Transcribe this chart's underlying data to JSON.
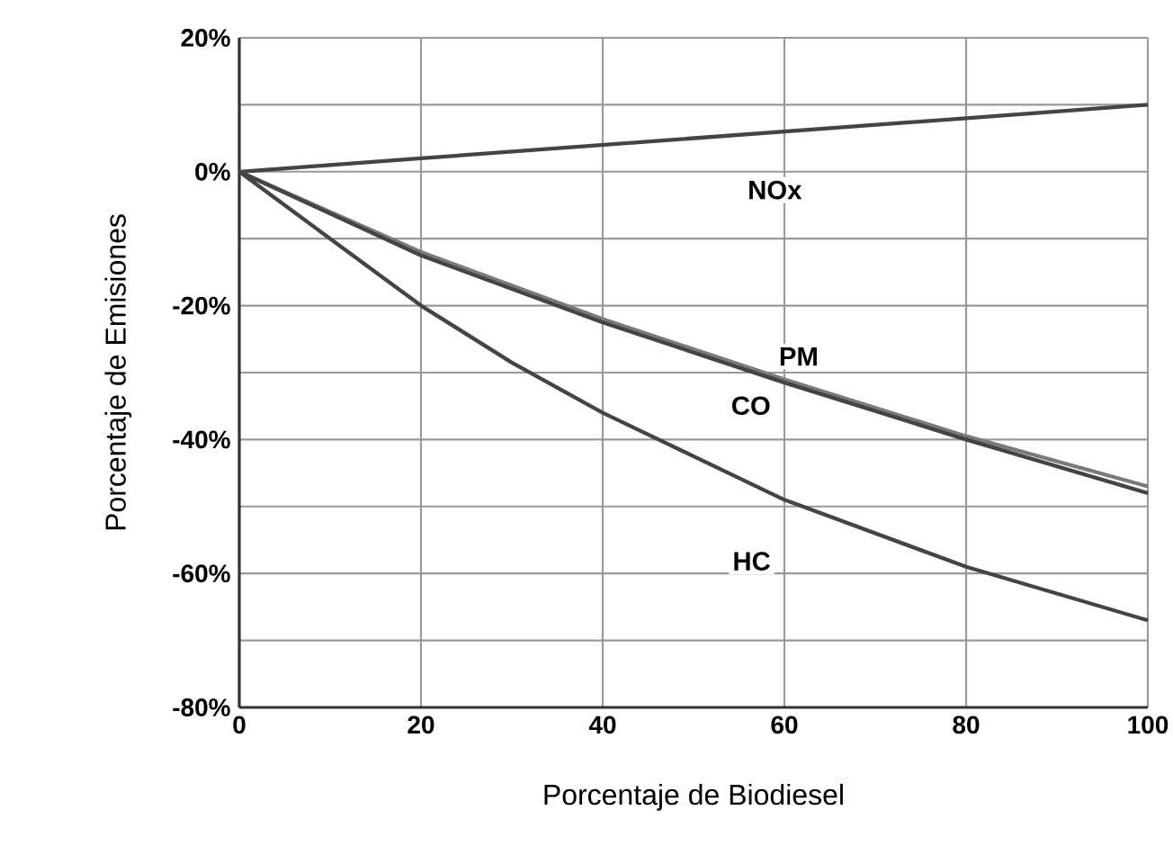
{
  "chart_data": {
    "type": "line",
    "xlabel": "Porcentaje de Biodiesel",
    "ylabel": "Porcentaje de Emisiones",
    "xlim": [
      0,
      100
    ],
    "ylim": [
      -80,
      20
    ],
    "xticks": [
      0,
      20,
      40,
      60,
      80,
      100
    ],
    "yticks": [
      {
        "value": -80,
        "label": "-80%"
      },
      {
        "value": -70,
        "label": null
      },
      {
        "value": -60,
        "label": "-60%"
      },
      {
        "value": -50,
        "label": null
      },
      {
        "value": -40,
        "label": "-40%"
      },
      {
        "value": -30,
        "label": null
      },
      {
        "value": -20,
        "label": "-20%"
      },
      {
        "value": -10,
        "label": null
      },
      {
        "value": 0,
        "label": "0%"
      },
      {
        "value": 10,
        "label": null
      },
      {
        "value": 20,
        "label": "20%"
      }
    ],
    "grid": true,
    "marker": "none",
    "line_style": "solid",
    "series": [
      {
        "name": "NOx",
        "color": "#444444",
        "x": [
          0,
          20,
          40,
          60,
          80,
          100
        ],
        "values": [
          0,
          2,
          4,
          6,
          8,
          10
        ]
      },
      {
        "name": "PM",
        "color": "#7a7a7a",
        "x": [
          0,
          20,
          40,
          60,
          80,
          100
        ],
        "values": [
          0,
          -12,
          -22,
          -31,
          -39.5,
          -47
        ]
      },
      {
        "name": "CO",
        "color": "#444444",
        "x": [
          0,
          20,
          40,
          60,
          80,
          100
        ],
        "values": [
          0,
          -12.5,
          -22.5,
          -31.5,
          -40,
          -48
        ]
      },
      {
        "name": "HC",
        "color": "#444444",
        "x": [
          0,
          10,
          20,
          30,
          40,
          60,
          80,
          100
        ],
        "values": [
          0,
          -10,
          -20,
          -28.5,
          -36,
          -49,
          -59,
          -67
        ]
      }
    ]
  }
}
